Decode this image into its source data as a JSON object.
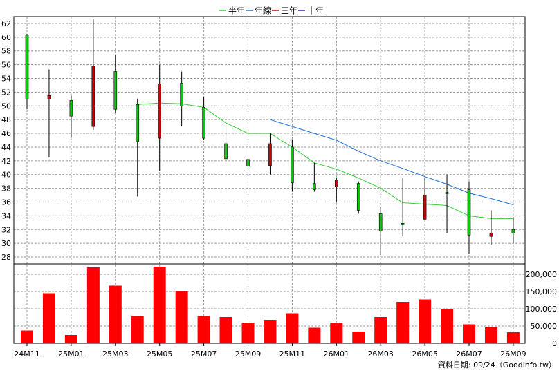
{
  "chart_data": {
    "type": "candlestick",
    "legend": [
      {
        "name": "半年",
        "color": "#33cc33"
      },
      {
        "name": "年線",
        "color": "#1f6fd6"
      },
      {
        "name": "三年",
        "color": "#cc0000"
      },
      {
        "name": "十年",
        "color": "#3322aa"
      }
    ],
    "x_labels": [
      "24M11",
      "25M01",
      "25M03",
      "25M05",
      "25M07",
      "25M09",
      "25M11",
      "26M01",
      "26M03",
      "26M05",
      "26M07",
      "26M09"
    ],
    "price_ticks": [
      28,
      30,
      32,
      34,
      36,
      38,
      40,
      42,
      44,
      46,
      48,
      50,
      52,
      54,
      56,
      58,
      60,
      62
    ],
    "price_range": [
      27,
      63
    ],
    "volume_ticks": [
      "0",
      "50,000",
      "100,000",
      "150,000",
      "200,000"
    ],
    "volume_range": [
      0,
      230000
    ],
    "candles": [
      {
        "o": 51.0,
        "h": 60.5,
        "l": 49.5,
        "c": 60.3
      },
      {
        "o": 51.5,
        "h": 55.3,
        "l": 42.5,
        "c": 51.0
      },
      {
        "o": 48.5,
        "h": 51.5,
        "l": 45.5,
        "c": 50.8
      },
      {
        "o": 55.8,
        "h": 62.7,
        "l": 46.5,
        "c": 47.0
      },
      {
        "o": 49.5,
        "h": 57.5,
        "l": 49.0,
        "c": 55.0
      },
      {
        "o": 44.8,
        "h": 51.0,
        "l": 36.8,
        "c": 50.2
      },
      {
        "o": 53.2,
        "h": 56.0,
        "l": 40.5,
        "c": 45.3
      },
      {
        "o": 50.0,
        "h": 55.0,
        "l": 47.0,
        "c": 53.3
      },
      {
        "o": 45.3,
        "h": 51.3,
        "l": 45.0,
        "c": 49.8
      },
      {
        "o": 42.3,
        "h": 48.0,
        "l": 41.8,
        "c": 44.5
      },
      {
        "o": 41.2,
        "h": 44.2,
        "l": 40.8,
        "c": 42.2
      },
      {
        "o": 44.5,
        "h": 46.0,
        "l": 40.0,
        "c": 41.3
      },
      {
        "o": 38.8,
        "h": 45.0,
        "l": 37.5,
        "c": 44.0
      },
      {
        "o": 37.8,
        "h": 41.7,
        "l": 37.5,
        "c": 38.7
      },
      {
        "o": 39.2,
        "h": 39.5,
        "l": 35.9,
        "c": 38.2
      },
      {
        "o": 34.8,
        "h": 39.0,
        "l": 34.3,
        "c": 38.7
      },
      {
        "o": 31.8,
        "h": 35.3,
        "l": 28.3,
        "c": 34.3
      },
      {
        "o": 32.8,
        "h": 39.5,
        "l": 31.0,
        "c": 32.9
      },
      {
        "o": 37.0,
        "h": 39.5,
        "l": 33.4,
        "c": 33.5
      },
      {
        "o": 37.2,
        "h": 40.0,
        "l": 31.5,
        "c": 37.4
      },
      {
        "o": 31.2,
        "h": 39.0,
        "l": 28.5,
        "c": 37.8
      },
      {
        "o": 31.5,
        "h": 34.8,
        "l": 29.8,
        "c": 31.0
      },
      {
        "o": 31.5,
        "h": 33.8,
        "l": 30.0,
        "c": 32.0
      }
    ],
    "ma_half": [
      null,
      null,
      null,
      null,
      null,
      50.2,
      50.4,
      50.3,
      49.8,
      47.5,
      46.0,
      46.0,
      44.0,
      41.7,
      40.8,
      39.5,
      38.0,
      35.9,
      35.7,
      35.5,
      34.0,
      33.6,
      33.6
    ],
    "ma_year": [
      null,
      null,
      null,
      null,
      null,
      null,
      null,
      null,
      null,
      null,
      null,
      48.0,
      47.0,
      46.0,
      45.0,
      43.4,
      42.0,
      40.9,
      39.7,
      38.6,
      37.3,
      36.5,
      35.6
    ],
    "volume": [
      37000,
      145000,
      24000,
      220000,
      167000,
      80000,
      222000,
      152000,
      80000,
      76000,
      58000,
      68000,
      87000,
      45000,
      60000,
      34000,
      76000,
      120000,
      127000,
      98000,
      55000,
      46000,
      32000
    ],
    "footer": "資料日期: 09/24（Goodinfo.tw）"
  }
}
